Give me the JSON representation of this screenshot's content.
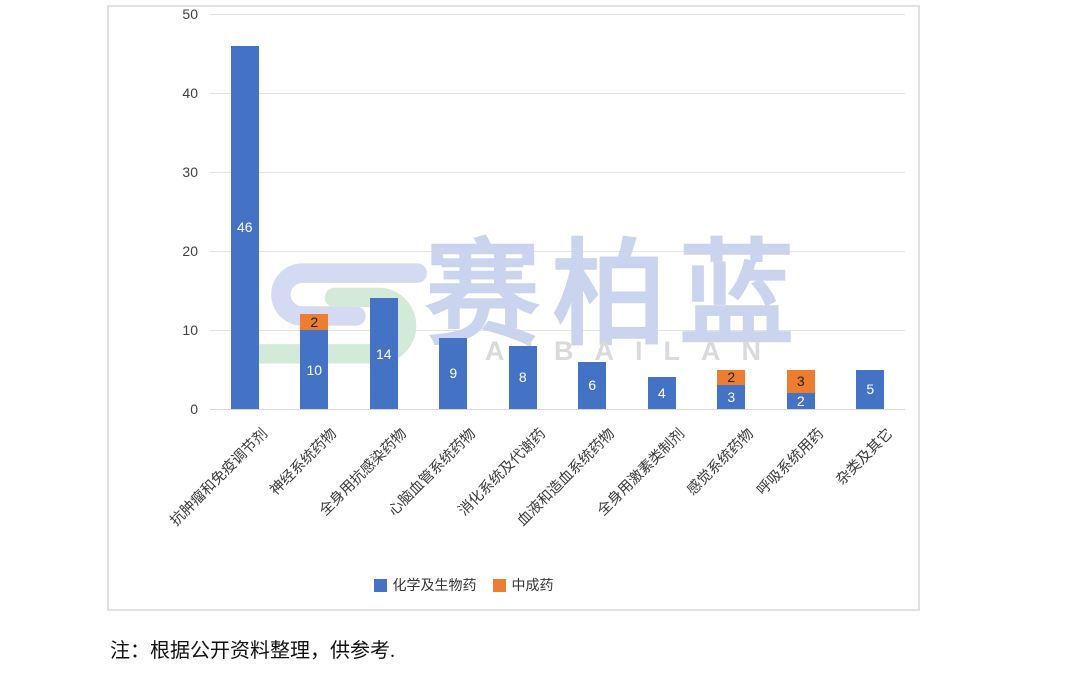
{
  "chart_data": {
    "type": "bar",
    "stacked": true,
    "categories": [
      "抗肿瘤和免疫调节剂",
      "神经系统药物",
      "全身用抗感染药物",
      "心脑血管系统药物",
      "消化系统及代谢药",
      "血液和造血系统药物",
      "全身用激素类制剂",
      "感觉系统药物",
      "呼吸系统用药",
      "杂类及其它"
    ],
    "series": [
      {
        "name": "化学及生物药",
        "color": "#4472c4",
        "label_color": "#ffffff",
        "values": [
          46,
          10,
          14,
          9,
          8,
          6,
          4,
          3,
          2,
          5
        ]
      },
      {
        "name": "中成药",
        "color": "#ed7d31",
        "label_color": "#222222",
        "values": [
          0,
          2,
          0,
          0,
          0,
          0,
          0,
          2,
          3,
          0
        ]
      }
    ],
    "title": "",
    "xlabel": "",
    "ylabel": "",
    "ylim": [
      0,
      50
    ],
    "yticks": [
      0,
      10,
      20,
      30,
      40,
      50
    ],
    "grid": true,
    "legend_position": "bottom"
  },
  "watermark": {
    "cn": "赛柏蓝",
    "en": "SAIBAILAN",
    "logo_outer_color": "#d3daf1",
    "logo_inner_color": "#d4ead9"
  },
  "note": "注：根据公开资料整理，供参考.",
  "colors": {
    "bar_blue": "#4472c4",
    "bar_orange": "#ed7d31",
    "gridline": "#e3e3e3",
    "card_border": "#e2e2e2",
    "tick_text": "#3f3f3f",
    "category_text": "#383838"
  }
}
